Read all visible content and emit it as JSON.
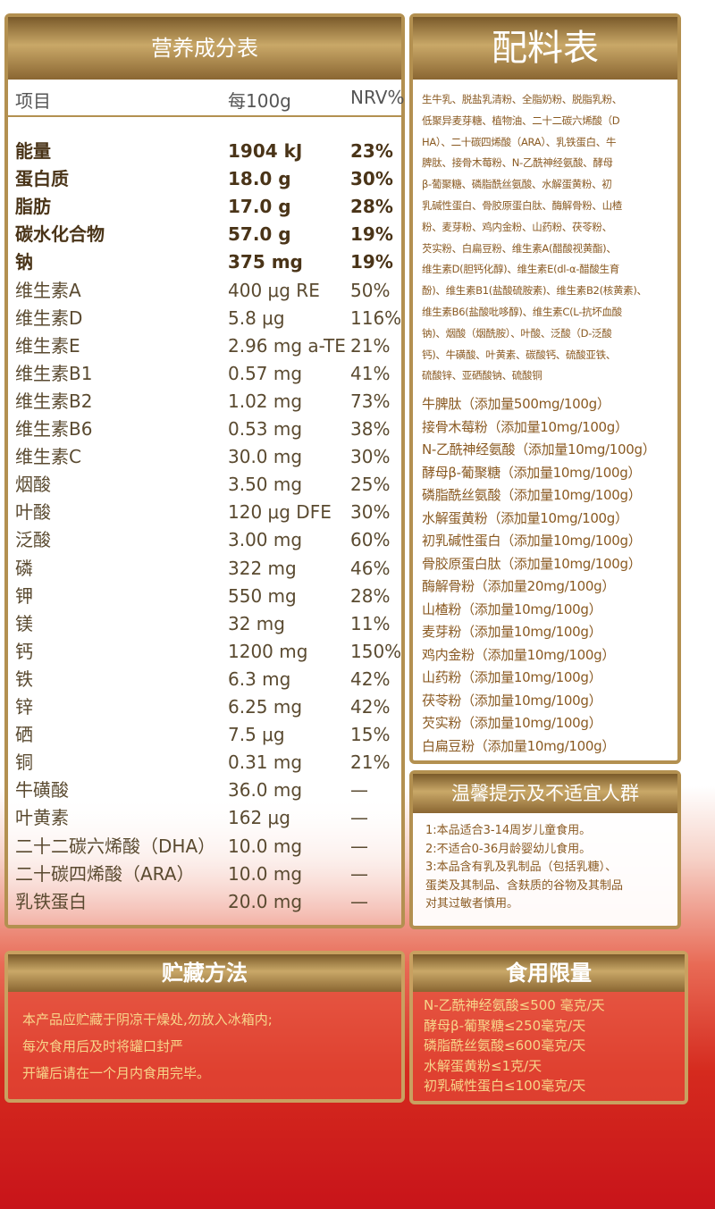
{
  "nutrition": {
    "title": "营养成分表",
    "columns": [
      "项目",
      "每100g",
      "NRV%"
    ],
    "rows": [
      [
        "能量",
        "1904 kJ",
        "23%"
      ],
      [
        "蛋白质",
        "18.0 g",
        "30%"
      ],
      [
        "脂肪",
        "17.0 g",
        "28%"
      ],
      [
        "碳水化合物",
        "57.0 g",
        "19%"
      ],
      [
        "钠",
        "375 mg",
        "19%"
      ],
      [
        "维生素A",
        "400 μg RE",
        "50%"
      ],
      [
        "维生素D",
        "5.8 μg",
        "116%"
      ],
      [
        "维生素E",
        "2.96 mg a-TE",
        "21%"
      ],
      [
        "维生素B1",
        "0.57 mg",
        "41%"
      ],
      [
        "维生素B2",
        "1.02 mg",
        "73%"
      ],
      [
        "维生素B6",
        "0.53 mg",
        "38%"
      ],
      [
        "维生素C",
        "30.0 mg",
        "30%"
      ],
      [
        "烟酸",
        "3.50 mg",
        "25%"
      ],
      [
        "叶酸",
        "120 μg DFE",
        "30%"
      ],
      [
        "泛酸",
        "3.00 mg",
        "60%"
      ],
      [
        "磷",
        "322 mg",
        "46%"
      ],
      [
        "钾",
        "550 mg",
        "28%"
      ],
      [
        "镁",
        "32 mg",
        "11%"
      ],
      [
        "钙",
        "1200 mg",
        "150%"
      ],
      [
        "铁",
        "6.3 mg",
        "42%"
      ],
      [
        "锌",
        "6.25 mg",
        "42%"
      ],
      [
        "硒",
        "7.5 μg",
        "15%"
      ],
      [
        "铜",
        "0.31 mg",
        "21%"
      ],
      [
        "牛磺酸",
        "36.0 mg",
        "—"
      ],
      [
        "叶黄素",
        "162 μg",
        "—"
      ],
      [
        "二十二碳六烯酸（DHA）",
        "10.0 mg",
        "—"
      ],
      [
        "二十碳四烯酸（ARA）",
        "10.0 mg",
        "—"
      ],
      [
        "乳铁蛋白",
        "20.0 mg",
        "—"
      ]
    ]
  },
  "ingredients": {
    "title": "配料表",
    "lines": [
      "生牛乳、脱盐乳清粉、全脂奶粉、脱脂乳粉、",
      "低聚异麦芽糖、植物油、二十二碳六烯酸（D",
      "HA）、二十碳四烯酸（ARA）、乳铁蛋白、牛",
      "脾肽、接骨木莓粉、N-乙酰神经氨酸、酵母",
      "β-葡聚糖、磷脂酰丝氨酸、水解蛋黄粉、初",
      "乳碱性蛋白、骨胶原蛋白肽、酶解骨粉、山楂",
      "粉、麦芽粉、鸡内金粉、山药粉、茯苓粉、",
      "芡实粉、白扁豆粉、维生素A(醋酸视黄酯)、",
      "维生素D(胆钙化醇)、维生素E(dl-α-醋酸生育",
      "酚)、维生素B1(盐酸硫胺素)、维生素B2(核黄素)、",
      "维生素B6(盐酸吡哆醇)、维生素C(L-抗坏血酸",
      "钠)、烟酸（烟酰胺）、叶酸、泛酸（D-泛酸",
      "钙)、牛磺酸、叶黄素、碳酸钙、硫酸亚铁、",
      "硫酸锌、亚硒酸钠、硫酸铜"
    ],
    "additives": [
      "牛脾肽（添加量500mg/100g）",
      "接骨木莓粉（添加量10mg/100g）",
      "N-乙酰神经氨酸（添加量10mg/100g）",
      "酵母β-葡聚糖（添加量10mg/100g）",
      "磷脂酰丝氨酸（添加量10mg/100g）",
      "水解蛋黄粉（添加量10mg/100g）",
      "初乳碱性蛋白（添加量10mg/100g）",
      "骨胶原蛋白肽（添加量10mg/100g）",
      "酶解骨粉（添加量20mg/100g）",
      "山楂粉（添加量10mg/100g）",
      "麦芽粉（添加量10mg/100g）",
      "鸡内金粉（添加量10mg/100g）",
      "山药粉（添加量10mg/100g）",
      "茯苓粉（添加量10mg/100g）",
      "芡实粉（添加量10mg/100g）",
      "白扁豆粉（添加量10mg/100g）"
    ]
  },
  "tips": {
    "title": "温馨提示及不适宜人群",
    "lines": [
      "1:本品适合3-14周岁儿童食用。",
      "2:不适合0-36月龄婴幼儿食用。",
      "3:本品含有乳及乳制品（包括乳糖）、",
      "蛋类及其制品、含麸质的谷物及其制品",
      "对其过敏者慎用。"
    ]
  },
  "storage": {
    "title": "贮藏方法",
    "lines": [
      "本产品应贮藏于阴凉干燥处,勿放入冰箱内;",
      "每次食用后及时将罐口封严",
      "开罐后请在一个月内食用完毕。"
    ]
  },
  "limits": {
    "title": "食用限量",
    "lines": [
      "N-乙酰神经氨酸≤500 毫克/天",
      "酵母β-葡聚糖≤250毫克/天",
      "磷脂酰丝氨酸≤600毫克/天",
      "水解蛋黄粉≤1克/天",
      "初乳碱性蛋白≤100毫克/天"
    ]
  }
}
